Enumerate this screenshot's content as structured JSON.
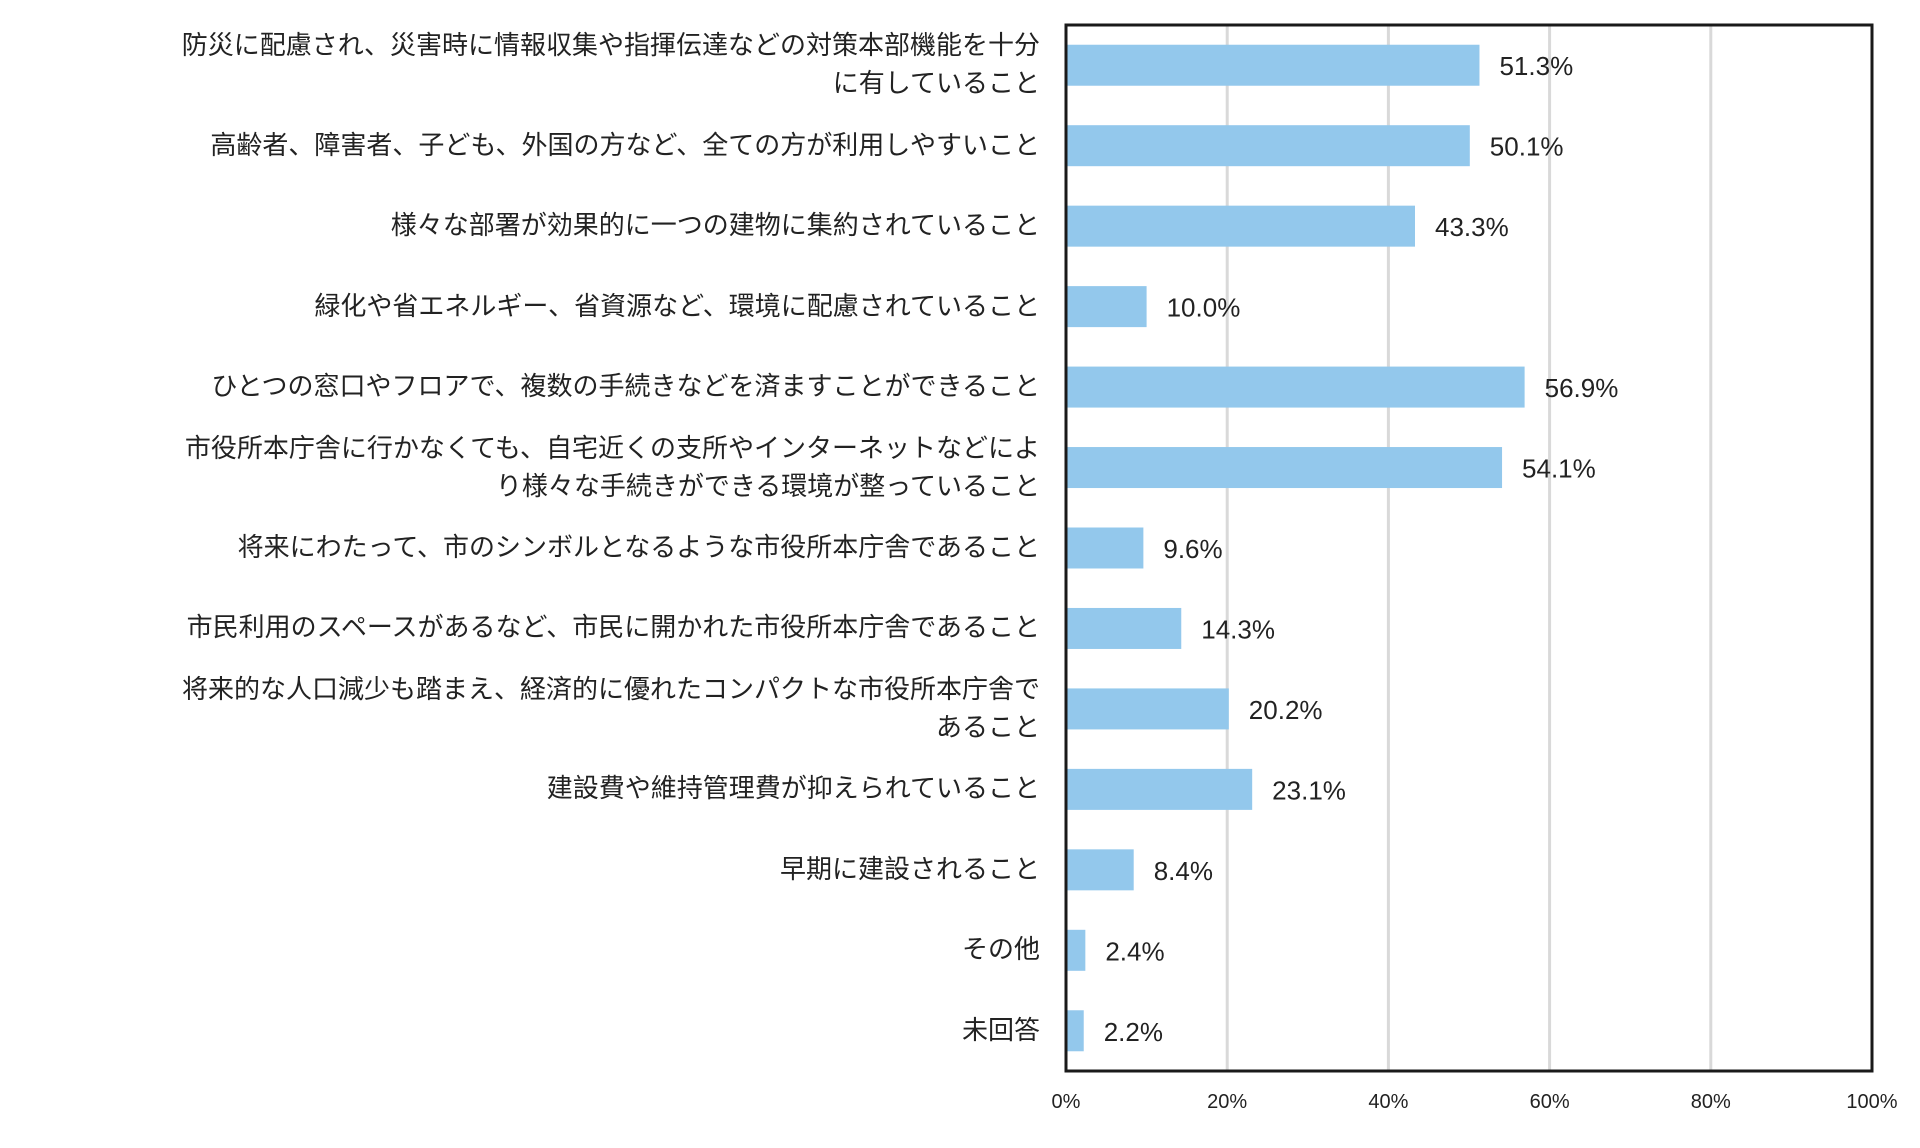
{
  "chart_data": {
    "type": "bar",
    "orientation": "horizontal",
    "title": "",
    "xlabel": "",
    "ylabel": "",
    "xlim": [
      0,
      100
    ],
    "grid": true,
    "bar_color": "#93c8ec",
    "xticks": [
      "0%",
      "20%",
      "40%",
      "60%",
      "80%",
      "100%"
    ],
    "categories": [
      [
        "防災に配慮され、災害時に情報収集や指揮伝達などの対策本部機能を十分",
        "に有していること"
      ],
      [
        "高齢者、障害者、子ども、外国の方など、全ての方が利用しやすいこと"
      ],
      [
        "様々な部署が効果的に一つの建物に集約されていること"
      ],
      [
        "緑化や省エネルギー、省資源など、環境に配慮されていること"
      ],
      [
        "ひとつの窓口やフロアで、複数の手続きなどを済ますことができること"
      ],
      [
        "市役所本庁舎に行かなくても、自宅近くの支所やインターネットなどによ",
        "り様々な手続きができる環境が整っていること"
      ],
      [
        "将来にわたって、市のシンボルとなるような市役所本庁舎であること"
      ],
      [
        "市民利用のスペースがあるなど、市民に開かれた市役所本庁舎であること"
      ],
      [
        "将来的な人口減少も踏まえ、経済的に優れたコンパクトな市役所本庁舎で",
        "あること"
      ],
      [
        "建設費や維持管理費が抑えられていること"
      ],
      [
        "早期に建設されること"
      ],
      [
        "その他"
      ],
      [
        "未回答"
      ]
    ],
    "values": [
      51.3,
      50.1,
      43.3,
      10.0,
      56.9,
      54.1,
      9.6,
      14.3,
      20.2,
      23.1,
      8.4,
      2.4,
      2.2
    ],
    "labels": [
      "51.3%",
      "50.1%",
      "43.3%",
      "10.0%",
      "56.9%",
      "54.1%",
      "9.6%",
      "14.3%",
      "20.2%",
      "23.1%",
      "8.4%",
      "2.4%",
      "2.2%"
    ]
  }
}
